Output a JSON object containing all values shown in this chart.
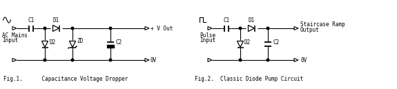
{
  "bg_color": "#ffffff",
  "line_color": "#000000",
  "fig1_title": "Fig.1.      Capacitance Voltage Dropper",
  "fig2_title": "Fig.2.  Classic Diode Pump Circuit",
  "label_ac1": "AC Mains",
  "label_ac2": "Input",
  "label_pulse1": "Pulse",
  "label_pulse2": "Input",
  "label_vout": "+ V Out",
  "label_0v": "0V",
  "label_out1": "Staircase Ramp",
  "label_out2": "Output",
  "c1_label": "C1",
  "d1_label": "D1",
  "d2_label": "D2",
  "zd_label": "ZD",
  "c2_label": "C2"
}
